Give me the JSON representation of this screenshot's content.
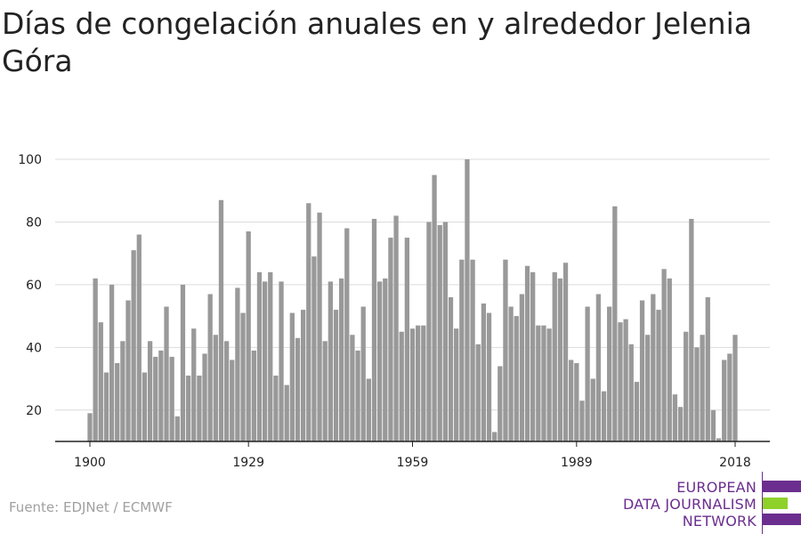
{
  "header": {
    "title": "Días de congelación anuales en y alrededor Jelenia Góra"
  },
  "footer": {
    "source": "Fuente: EDJNet / ECMWF"
  },
  "logo": {
    "line1": "EUROPEAN",
    "line2": "DATA JOURNALISM",
    "line3": "NETWORK",
    "color_purple": "#6b2e8f",
    "color_green": "#8fd12b"
  },
  "colors": {
    "bar": "#999999",
    "grid": "#dcdcdc",
    "axis": "#222222",
    "text": "#222222"
  },
  "chart_data": {
    "type": "bar",
    "title": "Días de congelación anuales en y alrededor Jelenia Góra",
    "xlabel": "",
    "ylabel": "",
    "x_start": 1900,
    "x_end": 2018,
    "xticks": [
      1900,
      1929,
      1959,
      1989,
      2018
    ],
    "yticks": [
      20,
      40,
      60,
      80,
      100
    ],
    "ylim": [
      10,
      100
    ],
    "grid": true,
    "values": [
      19,
      62,
      48,
      32,
      60,
      35,
      42,
      55,
      71,
      76,
      32,
      42,
      37,
      39,
      53,
      37,
      18,
      60,
      31,
      46,
      31,
      38,
      57,
      44,
      87,
      42,
      36,
      59,
      51,
      77,
      39,
      64,
      61,
      64,
      31,
      61,
      28,
      51,
      43,
      52,
      86,
      69,
      83,
      42,
      61,
      52,
      62,
      78,
      44,
      39,
      53,
      30,
      81,
      61,
      62,
      75,
      82,
      45,
      75,
      46,
      47,
      47,
      80,
      95,
      79,
      80,
      56,
      46,
      68,
      100,
      68,
      41,
      54,
      51,
      13,
      34,
      68,
      53,
      50,
      57,
      66,
      64,
      47,
      47,
      46,
      64,
      62,
      67,
      36,
      35,
      23,
      53,
      30,
      57,
      26,
      53,
      85,
      48,
      49,
      41,
      29,
      55,
      44,
      57,
      52,
      65,
      62,
      25,
      21,
      45,
      81,
      40,
      44,
      56,
      20,
      11,
      36,
      38,
      44
    ]
  }
}
